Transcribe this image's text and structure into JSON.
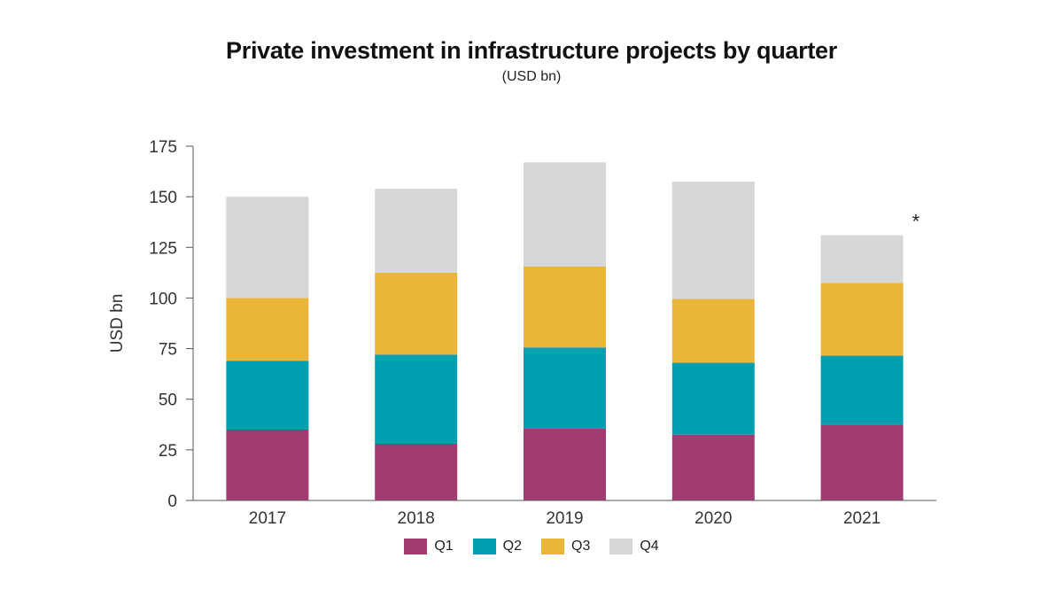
{
  "chart_data": {
    "type": "bar",
    "stacked": true,
    "title": "Private investment in infrastructure projects by quarter",
    "subtitle": "(USD bn)",
    "ylabel": "USD bn",
    "xlabel": "",
    "categories": [
      "2017",
      "2018",
      "2019",
      "2020",
      "2021"
    ],
    "ylim": [
      0,
      175
    ],
    "yticks": [
      0,
      25,
      50,
      75,
      100,
      125,
      150,
      175
    ],
    "grid": false,
    "legend_position": "bottom-center",
    "annotation": {
      "text": "*",
      "category": "2021"
    },
    "series": [
      {
        "name": "Q1",
        "color": "#a33a72",
        "values": [
          35,
          28,
          35.5,
          32.5,
          37.5
        ]
      },
      {
        "name": "Q2",
        "color": "#00a0b0",
        "values": [
          34,
          44,
          40,
          35.5,
          34
        ]
      },
      {
        "name": "Q3",
        "color": "#ebb53a",
        "values": [
          31,
          40.5,
          40,
          31.5,
          36
        ]
      },
      {
        "name": "Q4",
        "color": "#d6d7d9",
        "values": [
          50,
          41.5,
          51.5,
          58,
          23.5
        ]
      }
    ]
  }
}
